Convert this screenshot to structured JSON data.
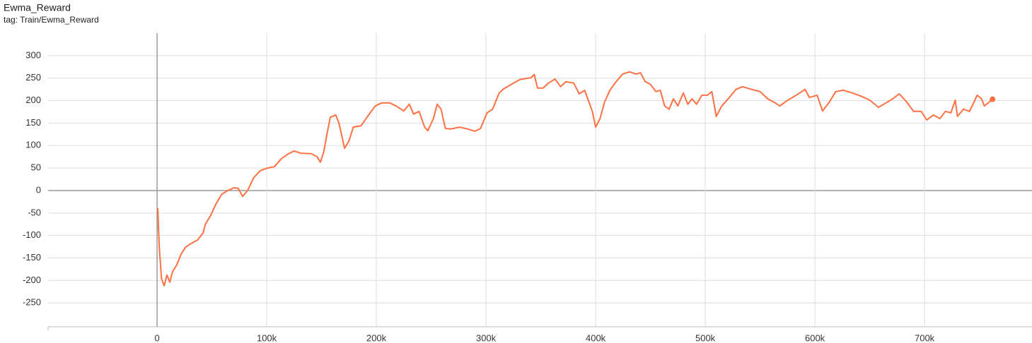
{
  "chart_data": {
    "type": "line",
    "title": "Ewma_Reward",
    "subtitle": "tag: Train/Ewma_Reward",
    "color": "#ff7043",
    "grid": true,
    "xlim": [
      -99400,
      798000
    ],
    "xticks": [
      {
        "value": 0,
        "label": "0"
      },
      {
        "value": 100000,
        "label": "100k"
      },
      {
        "value": 200000,
        "label": "200k"
      },
      {
        "value": 300000,
        "label": "300k"
      },
      {
        "value": 400000,
        "label": "400k"
      },
      {
        "value": 500000,
        "label": "500k"
      },
      {
        "value": 600000,
        "label": "600k"
      },
      {
        "value": 700000,
        "label": "700k"
      }
    ],
    "ylim": [
      -303,
      350
    ],
    "yticks": [
      -250,
      -200,
      -150,
      -100,
      -50,
      0,
      50,
      100,
      150,
      200,
      250,
      300
    ],
    "x": [
      600,
      2000,
      4000,
      6500,
      9000,
      11600,
      14000,
      18000,
      22000,
      26000,
      31000,
      37000,
      42000,
      44000,
      49000,
      53500,
      59000,
      64500,
      70000,
      74000,
      78000,
      82500,
      88000,
      94000,
      100600,
      107000,
      113500,
      120000,
      125000,
      131000,
      140600,
      146000,
      149000,
      152000,
      155000,
      158000,
      163000,
      166000,
      171000,
      175000,
      179000,
      186000,
      192000,
      199000,
      205000,
      212000,
      218000,
      225000,
      230000,
      234000,
      239000,
      244000,
      247000,
      252000,
      255500,
      259000,
      263000,
      268000,
      276000,
      283000,
      290000,
      295000,
      301000,
      306000,
      312000,
      316000,
      323000,
      331000,
      341000,
      344000,
      347000,
      352000,
      357000,
      363000,
      368000,
      373000,
      380000,
      385000,
      390000,
      394000,
      397000,
      400000,
      404000,
      408000,
      413000,
      418000,
      424500,
      431000,
      437000,
      441000,
      445000,
      450000,
      455000,
      459000,
      463000,
      467000,
      471000,
      475000,
      480000,
      484000,
      488000,
      492000,
      497000,
      502000,
      506000,
      510000,
      515000,
      521000,
      528000,
      534000,
      542000,
      550000,
      557000,
      563000,
      568000,
      574000,
      583000,
      591000,
      595000,
      602000,
      607000,
      613000,
      619000,
      626000,
      634000,
      642000,
      650000,
      658000,
      665000,
      671000,
      677000,
      684000,
      690000,
      697000,
      702000,
      708000,
      714000,
      719000,
      724000,
      728000,
      730000,
      735500,
      741000,
      745000,
      748000,
      752000,
      754500,
      758600,
      762000
    ],
    "values": [
      -39,
      -126,
      -196,
      -212,
      -188,
      -204,
      -181,
      -165,
      -141,
      -126,
      -118,
      -110,
      -94,
      -75,
      -55,
      -31,
      -8,
      0,
      6,
      5,
      -13,
      0,
      28,
      44,
      50,
      53,
      71,
      82,
      88,
      83,
      82,
      75,
      63,
      86,
      126,
      163,
      168,
      149,
      94,
      110,
      141,
      144,
      165,
      188,
      195,
      195,
      188,
      177,
      192,
      170,
      176,
      141,
      133,
      160,
      192,
      181,
      138,
      137,
      141,
      137,
      132,
      138,
      173,
      181,
      217,
      226,
      236,
      247,
      251,
      258,
      228,
      228,
      239,
      248,
      231,
      242,
      239,
      215,
      223,
      196,
      176,
      141,
      160,
      196,
      223,
      240,
      259,
      264,
      259,
      262,
      243,
      236,
      220,
      223,
      188,
      181,
      204,
      188,
      217,
      192,
      204,
      192,
      212,
      212,
      220,
      165,
      188,
      204,
      225,
      231,
      225,
      220,
      204,
      196,
      188,
      199,
      212,
      225,
      207,
      212,
      177,
      196,
      220,
      223,
      217,
      210,
      201,
      185,
      195,
      204,
      215,
      196,
      176,
      176,
      157,
      168,
      160,
      176,
      173,
      201,
      165,
      181,
      176,
      196,
      212,
      204,
      188,
      196,
      203
    ]
  }
}
